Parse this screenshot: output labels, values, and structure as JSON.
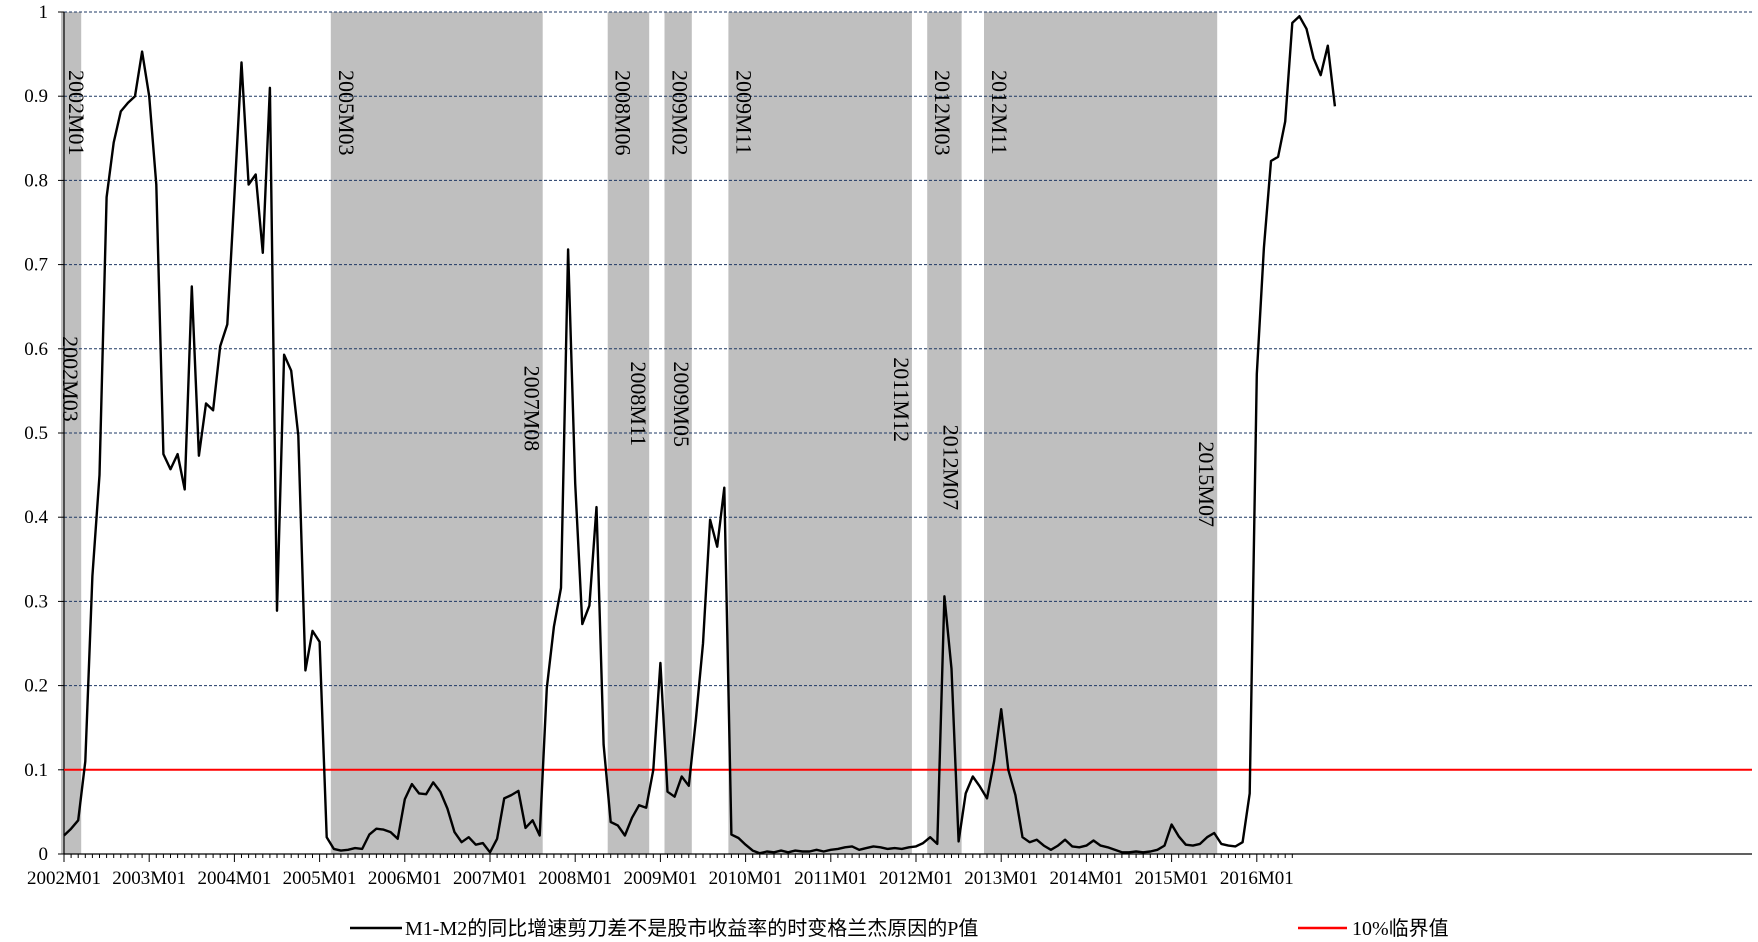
{
  "chart_data": {
    "type": "line",
    "title": "",
    "xlabel": "",
    "ylabel": "",
    "ylim": [
      0,
      1
    ],
    "yticks": [
      "0",
      "0.1",
      "0.2",
      "0.3",
      "0.4",
      "0.5",
      "0.6",
      "0.7",
      "0.8",
      "0.9",
      "1"
    ],
    "xticks": [
      "2002M01",
      "2003M01",
      "2004M01",
      "2005M01",
      "2006M01",
      "2007M01",
      "2008M01",
      "2009M01",
      "2010M01",
      "2011M01",
      "2012M01",
      "2013M01",
      "2014M01",
      "2015M01",
      "2016M01"
    ],
    "x_start": "2002M01",
    "x_end": "2016M06",
    "grid": "horizontal dashed",
    "legend_position": "bottom",
    "threshold": 0.1,
    "colors": {
      "series": "#000000",
      "threshold": "#ff0000",
      "shade": "#bfbfbf",
      "grid": "#1f3864"
    },
    "shaded_periods": [
      {
        "start": "2002M01",
        "end": "2002M03"
      },
      {
        "start": "2005M03",
        "end": "2007M08"
      },
      {
        "start": "2008M06",
        "end": "2008M11"
      },
      {
        "start": "2009M02",
        "end": "2009M05"
      },
      {
        "start": "2009M11",
        "end": "2011M12"
      },
      {
        "start": "2012M03",
        "end": "2012M07"
      },
      {
        "start": "2012M11",
        "end": "2015M07"
      }
    ],
    "period_labels": [
      "2002M01",
      "2002M03",
      "2005M03",
      "2007M08",
      "2008M06",
      "2008M11",
      "2009M02",
      "2009M05",
      "2009M11",
      "2011M12",
      "2012M03",
      "2012M07",
      "2012M11",
      "2015M07"
    ],
    "series": [
      {
        "name": "M1-M2的同比增速剪刀差不是股市收益率的时变格兰杰原因的P值",
        "values": [
          0.022,
          0.03,
          0.04,
          0.11,
          0.33,
          0.45,
          0.78,
          0.845,
          0.882,
          0.892,
          0.9,
          0.953,
          0.9,
          0.795,
          0.475,
          0.457,
          0.475,
          0.433,
          0.674,
          0.473,
          0.535,
          0.527,
          0.603,
          0.629,
          0.782,
          0.94,
          0.795,
          0.807,
          0.714,
          0.91,
          0.289,
          0.593,
          0.574,
          0.497,
          0.218,
          0.265,
          0.252,
          0.02,
          0.006,
          0.004,
          0.005,
          0.007,
          0.006,
          0.023,
          0.03,
          0.029,
          0.026,
          0.018,
          0.065,
          0.083,
          0.072,
          0.071,
          0.085,
          0.074,
          0.054,
          0.026,
          0.014,
          0.02,
          0.011,
          0.013,
          0.002,
          0.018,
          0.066,
          0.07,
          0.075,
          0.031,
          0.04,
          0.022,
          0.197,
          0.27,
          0.316,
          0.718,
          0.44,
          0.273,
          0.295,
          0.412,
          0.13,
          0.038,
          0.034,
          0.022,
          0.043,
          0.058,
          0.055,
          0.1,
          0.227,
          0.074,
          0.068,
          0.092,
          0.081,
          0.16,
          0.25,
          0.397,
          0.365,
          0.435,
          0.023,
          0.019,
          0.011,
          0.004,
          0.001,
          0.003,
          0.002,
          0.004,
          0.002,
          0.004,
          0.003,
          0.003,
          0.005,
          0.003,
          0.005,
          0.006,
          0.008,
          0.009,
          0.005,
          0.007,
          0.009,
          0.008,
          0.006,
          0.007,
          0.006,
          0.008,
          0.009,
          0.013,
          0.02,
          0.012,
          0.306,
          0.22,
          0.015,
          0.072,
          0.092,
          0.08,
          0.066,
          0.11,
          0.172,
          0.1,
          0.07,
          0.02,
          0.014,
          0.017,
          0.01,
          0.005,
          0.01,
          0.017,
          0.009,
          0.008,
          0.01,
          0.016,
          0.01,
          0.008,
          0.005,
          0.002,
          0.002,
          0.003,
          0.002,
          0.003,
          0.005,
          0.01,
          0.035,
          0.021,
          0.011,
          0.01,
          0.012,
          0.02,
          0.025,
          0.012,
          0.01,
          0.009,
          0.014,
          0.072,
          0.57,
          0.72,
          0.823,
          0.828,
          0.87,
          0.987,
          0.995,
          0.98,
          0.945,
          0.925,
          0.96,
          0.888
        ]
      },
      {
        "name": "10%临界值",
        "values": [
          0.1
        ]
      }
    ]
  }
}
